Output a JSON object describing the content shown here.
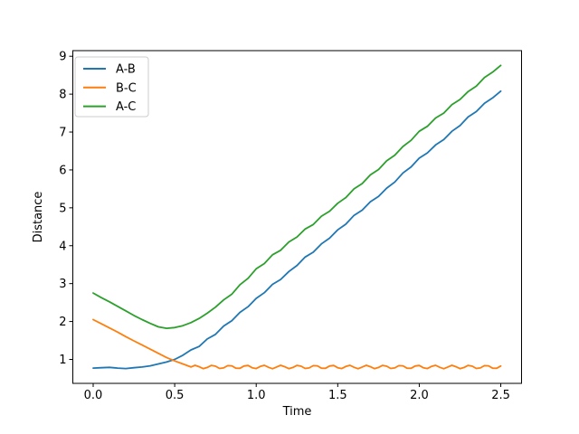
{
  "chart_data": {
    "type": "line",
    "title": "",
    "xlabel": "Time",
    "ylabel": "Distance",
    "xlim": [
      -0.1248,
      2.6274
    ],
    "ylim": [
      0.3676,
      9.148
    ],
    "grid": false,
    "background": "#ffffff",
    "axes_color": "#000000",
    "xticks": {
      "values": [
        0.0,
        0.5,
        1.0,
        1.5,
        2.0,
        2.5
      ],
      "labels": [
        "0.0",
        "0.5",
        "1.0",
        "1.5",
        "2.0",
        "2.5"
      ]
    },
    "yticks": {
      "values": [
        1,
        2,
        3,
        4,
        5,
        6,
        7,
        8,
        9
      ],
      "labels": [
        "1",
        "2",
        "3",
        "4",
        "5",
        "6",
        "7",
        "8",
        "9"
      ]
    },
    "legend": {
      "position": "upper-left",
      "border_color": "#cccccc",
      "fill": "rgba(255,255,255,0.9)"
    },
    "series": [
      {
        "name": "A-B",
        "color": "#1f77b4",
        "points": [
          [
            0.0,
            0.77
          ],
          [
            0.05,
            0.78
          ],
          [
            0.1,
            0.79
          ],
          [
            0.15,
            0.77
          ],
          [
            0.2,
            0.76
          ],
          [
            0.25,
            0.78
          ],
          [
            0.3,
            0.8
          ],
          [
            0.35,
            0.83
          ],
          [
            0.4,
            0.88
          ],
          [
            0.45,
            0.93
          ],
          [
            0.5,
            1.0
          ],
          [
            0.55,
            1.11
          ],
          [
            0.6,
            1.25
          ],
          [
            0.65,
            1.34
          ],
          [
            0.7,
            1.54
          ],
          [
            0.75,
            1.66
          ],
          [
            0.8,
            1.88
          ],
          [
            0.85,
            2.02
          ],
          [
            0.9,
            2.24
          ],
          [
            0.95,
            2.39
          ],
          [
            1.0,
            2.61
          ],
          [
            1.05,
            2.76
          ],
          [
            1.1,
            2.98
          ],
          [
            1.15,
            3.11
          ],
          [
            1.2,
            3.32
          ],
          [
            1.25,
            3.48
          ],
          [
            1.3,
            3.7
          ],
          [
            1.35,
            3.83
          ],
          [
            1.4,
            4.05
          ],
          [
            1.45,
            4.2
          ],
          [
            1.5,
            4.42
          ],
          [
            1.55,
            4.57
          ],
          [
            1.6,
            4.8
          ],
          [
            1.65,
            4.94
          ],
          [
            1.7,
            5.16
          ],
          [
            1.75,
            5.3
          ],
          [
            1.8,
            5.52
          ],
          [
            1.85,
            5.68
          ],
          [
            1.9,
            5.92
          ],
          [
            1.95,
            6.08
          ],
          [
            2.0,
            6.31
          ],
          [
            2.05,
            6.45
          ],
          [
            2.1,
            6.66
          ],
          [
            2.15,
            6.8
          ],
          [
            2.2,
            7.02
          ],
          [
            2.25,
            7.17
          ],
          [
            2.3,
            7.4
          ],
          [
            2.35,
            7.54
          ],
          [
            2.4,
            7.76
          ],
          [
            2.45,
            7.9
          ],
          [
            2.5,
            8.08
          ]
        ]
      },
      {
        "name": "B-C",
        "color": "#ff7f0e",
        "points": [
          [
            0.0,
            2.05
          ],
          [
            0.05,
            1.94
          ],
          [
            0.1,
            1.83
          ],
          [
            0.15,
            1.72
          ],
          [
            0.2,
            1.6
          ],
          [
            0.25,
            1.49
          ],
          [
            0.3,
            1.38
          ],
          [
            0.35,
            1.27
          ],
          [
            0.4,
            1.16
          ],
          [
            0.45,
            1.05
          ],
          [
            0.5,
            0.96
          ],
          [
            0.55,
            0.88
          ],
          [
            0.6,
            0.8
          ],
          [
            0.625,
            0.845
          ],
          [
            0.65,
            0.807
          ],
          [
            0.675,
            0.756
          ],
          [
            0.7,
            0.787
          ],
          [
            0.725,
            0.842
          ],
          [
            0.75,
            0.82
          ],
          [
            0.775,
            0.761
          ],
          [
            0.8,
            0.775
          ],
          [
            0.825,
            0.835
          ],
          [
            0.85,
            0.831
          ],
          [
            0.875,
            0.769
          ],
          [
            0.9,
            0.765
          ],
          [
            0.925,
            0.825
          ],
          [
            0.95,
            0.839
          ],
          [
            0.975,
            0.78
          ],
          [
            1.0,
            0.758
          ],
          [
            1.025,
            0.813
          ],
          [
            1.05,
            0.844
          ],
          [
            1.075,
            0.793
          ],
          [
            1.1,
            0.755
          ],
          [
            1.125,
            0.8
          ],
          [
            1.15,
            0.845
          ],
          [
            1.175,
            0.807
          ],
          [
            1.2,
            0.756
          ],
          [
            1.225,
            0.787
          ],
          [
            1.25,
            0.842
          ],
          [
            1.275,
            0.82
          ],
          [
            1.3,
            0.761
          ],
          [
            1.325,
            0.775
          ],
          [
            1.35,
            0.835
          ],
          [
            1.375,
            0.831
          ],
          [
            1.4,
            0.769
          ],
          [
            1.425,
            0.765
          ],
          [
            1.45,
            0.825
          ],
          [
            1.475,
            0.839
          ],
          [
            1.5,
            0.78
          ],
          [
            1.525,
            0.758
          ],
          [
            1.55,
            0.813
          ],
          [
            1.575,
            0.844
          ],
          [
            1.6,
            0.793
          ],
          [
            1.625,
            0.755
          ],
          [
            1.65,
            0.8
          ],
          [
            1.675,
            0.845
          ],
          [
            1.7,
            0.807
          ],
          [
            1.725,
            0.756
          ],
          [
            1.75,
            0.787
          ],
          [
            1.775,
            0.842
          ],
          [
            1.8,
            0.82
          ],
          [
            1.825,
            0.761
          ],
          [
            1.85,
            0.775
          ],
          [
            1.875,
            0.835
          ],
          [
            1.9,
            0.831
          ],
          [
            1.925,
            0.769
          ],
          [
            1.95,
            0.765
          ],
          [
            1.975,
            0.825
          ],
          [
            2.0,
            0.839
          ],
          [
            2.025,
            0.78
          ],
          [
            2.05,
            0.758
          ],
          [
            2.075,
            0.813
          ],
          [
            2.1,
            0.844
          ],
          [
            2.125,
            0.793
          ],
          [
            2.15,
            0.755
          ],
          [
            2.175,
            0.8
          ],
          [
            2.2,
            0.845
          ],
          [
            2.225,
            0.807
          ],
          [
            2.25,
            0.756
          ],
          [
            2.275,
            0.787
          ],
          [
            2.3,
            0.842
          ],
          [
            2.325,
            0.82
          ],
          [
            2.35,
            0.761
          ],
          [
            2.375,
            0.775
          ],
          [
            2.4,
            0.835
          ],
          [
            2.425,
            0.831
          ],
          [
            2.45,
            0.769
          ],
          [
            2.475,
            0.765
          ],
          [
            2.5,
            0.825
          ]
        ]
      },
      {
        "name": "A-C",
        "color": "#2ca02c",
        "points": [
          [
            0.0,
            2.75
          ],
          [
            0.05,
            2.63
          ],
          [
            0.1,
            2.52
          ],
          [
            0.15,
            2.4
          ],
          [
            0.2,
            2.28
          ],
          [
            0.25,
            2.16
          ],
          [
            0.3,
            2.05
          ],
          [
            0.35,
            1.95
          ],
          [
            0.4,
            1.86
          ],
          [
            0.45,
            1.82
          ],
          [
            0.5,
            1.84
          ],
          [
            0.55,
            1.89
          ],
          [
            0.6,
            1.97
          ],
          [
            0.65,
            2.08
          ],
          [
            0.7,
            2.22
          ],
          [
            0.75,
            2.38
          ],
          [
            0.8,
            2.57
          ],
          [
            0.85,
            2.72
          ],
          [
            0.9,
            2.97
          ],
          [
            0.95,
            3.14
          ],
          [
            1.0,
            3.39
          ],
          [
            1.05,
            3.53
          ],
          [
            1.1,
            3.76
          ],
          [
            1.15,
            3.88
          ],
          [
            1.2,
            4.1
          ],
          [
            1.25,
            4.23
          ],
          [
            1.3,
            4.44
          ],
          [
            1.35,
            4.56
          ],
          [
            1.4,
            4.78
          ],
          [
            1.45,
            4.91
          ],
          [
            1.5,
            5.12
          ],
          [
            1.55,
            5.27
          ],
          [
            1.6,
            5.5
          ],
          [
            1.65,
            5.64
          ],
          [
            1.7,
            5.87
          ],
          [
            1.75,
            6.01
          ],
          [
            1.8,
            6.24
          ],
          [
            1.85,
            6.39
          ],
          [
            1.9,
            6.62
          ],
          [
            1.95,
            6.78
          ],
          [
            2.0,
            7.02
          ],
          [
            2.05,
            7.15
          ],
          [
            2.1,
            7.37
          ],
          [
            2.15,
            7.5
          ],
          [
            2.2,
            7.72
          ],
          [
            2.25,
            7.86
          ],
          [
            2.3,
            8.07
          ],
          [
            2.35,
            8.21
          ],
          [
            2.4,
            8.44
          ],
          [
            2.45,
            8.58
          ],
          [
            2.5,
            8.76
          ]
        ]
      }
    ]
  }
}
